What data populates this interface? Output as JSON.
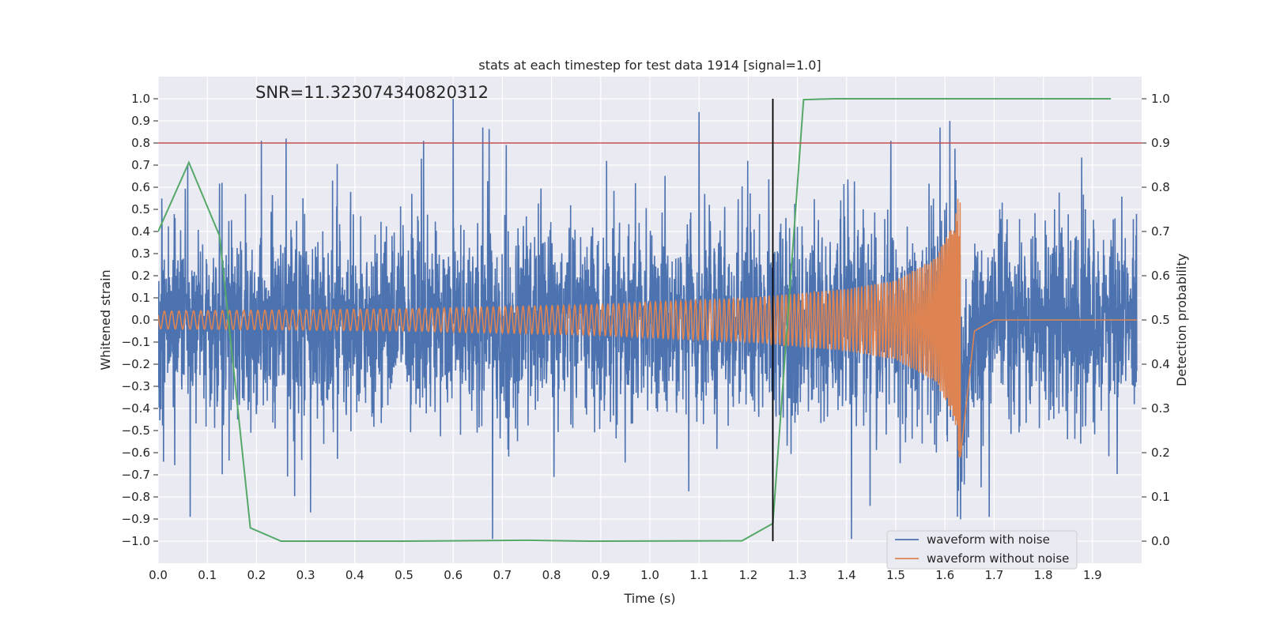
{
  "chart_data": {
    "type": "line",
    "title": "stats at each timestep for test data 1914 [signal=1.0]",
    "xlabel": "Time (s)",
    "ylabel": "Whitened strain",
    "y2label": "Detection probability",
    "annotation": "SNR=11.323074340820312",
    "xlim": [
      0,
      2.0
    ],
    "ylim": [
      -1.1,
      1.1
    ],
    "y2lim": [
      -0.05,
      1.05
    ],
    "x_ticks": [
      "0.0",
      "0.1",
      "0.2",
      "0.3",
      "0.4",
      "0.5",
      "0.6",
      "0.7",
      "0.8",
      "0.9",
      "1.0",
      "1.1",
      "1.2",
      "1.3",
      "1.4",
      "1.5",
      "1.6",
      "1.7",
      "1.8",
      "1.9"
    ],
    "y_ticks": [
      "1.0",
      "0.9",
      "0.8",
      "0.7",
      "0.6",
      "0.5",
      "0.4",
      "0.3",
      "0.2",
      "0.1",
      "0.0",
      "−0.1",
      "−0.2",
      "−0.3",
      "−0.4",
      "−0.5",
      "−0.6",
      "−0.7",
      "−0.8",
      "−0.9",
      "−1.0"
    ],
    "y2_ticks": [
      "1.0",
      "0.9",
      "0.8",
      "0.7",
      "0.6",
      "0.5",
      "0.4",
      "0.3",
      "0.2",
      "0.1",
      "0.0"
    ],
    "grid": true,
    "legend": {
      "placement": "lower-right"
    },
    "threshold": {
      "value": 0.8,
      "axis": "left",
      "color": "#c44e52"
    },
    "marker_line": {
      "x": 1.25,
      "y_range": [
        -1.0,
        1.0
      ],
      "color": "#000000"
    },
    "series": [
      {
        "name": "waveform with noise",
        "color": "#4c72b0",
        "axis": "left",
        "description": "noisy whitened strain trace, roughly uniform amplitude across the window",
        "spikes": [
          {
            "x": 0.06,
            "y": 0.7
          },
          {
            "x": 0.065,
            "y": -0.89
          },
          {
            "x": 0.13,
            "y": 0.62
          },
          {
            "x": 0.21,
            "y": 0.81
          },
          {
            "x": 0.26,
            "y": 0.82
          },
          {
            "x": 0.31,
            "y": -0.87
          },
          {
            "x": 0.54,
            "y": 0.81
          },
          {
            "x": 0.6,
            "y": 1.0
          },
          {
            "x": 0.66,
            "y": 0.87
          },
          {
            "x": 0.68,
            "y": -0.99
          },
          {
            "x": 1.1,
            "y": 0.94
          },
          {
            "x": 1.41,
            "y": -0.99
          },
          {
            "x": 1.49,
            "y": 0.81
          },
          {
            "x": 1.59,
            "y": 0.87
          },
          {
            "x": 1.61,
            "y": 0.9
          },
          {
            "x": 1.69,
            "y": -0.89
          }
        ]
      },
      {
        "name": "waveform without noise",
        "color": "#dd8452",
        "axis": "left",
        "description": "chirp signal: amplitude grows from ~0.04 to ~0.65 and frequency increases until merger near t=1.63 s, then rings down to 0 by ~1.7 s",
        "envelope": [
          {
            "x": 0.0,
            "amp": 0.04
          },
          {
            "x": 0.5,
            "amp": 0.05
          },
          {
            "x": 0.9,
            "amp": 0.07
          },
          {
            "x": 1.2,
            "amp": 0.1
          },
          {
            "x": 1.4,
            "amp": 0.14
          },
          {
            "x": 1.5,
            "amp": 0.18
          },
          {
            "x": 1.58,
            "amp": 0.28
          },
          {
            "x": 1.62,
            "amp": 0.45
          },
          {
            "x": 1.63,
            "amp": 0.65
          },
          {
            "x": 1.66,
            "amp": 0.05
          },
          {
            "x": 1.7,
            "amp": 0.0
          },
          {
            "x": 2.0,
            "amp": 0.0
          }
        ]
      },
      {
        "name": "detection probability",
        "color": "#55a868",
        "axis": "right",
        "points": [
          {
            "x": 0.0,
            "y": 0.7
          },
          {
            "x": 0.0625,
            "y": 0.856
          },
          {
            "x": 0.125,
            "y": 0.69
          },
          {
            "x": 0.1875,
            "y": 0.03
          },
          {
            "x": 0.25,
            "y": 0.0
          },
          {
            "x": 0.5,
            "y": 0.0
          },
          {
            "x": 0.75,
            "y": 0.002
          },
          {
            "x": 0.875,
            "y": 0.0
          },
          {
            "x": 1.1875,
            "y": 0.001
          },
          {
            "x": 1.25,
            "y": 0.04
          },
          {
            "x": 1.3125,
            "y": 0.998
          },
          {
            "x": 1.375,
            "y": 1.0
          },
          {
            "x": 1.9375,
            "y": 1.0
          }
        ]
      }
    ]
  }
}
